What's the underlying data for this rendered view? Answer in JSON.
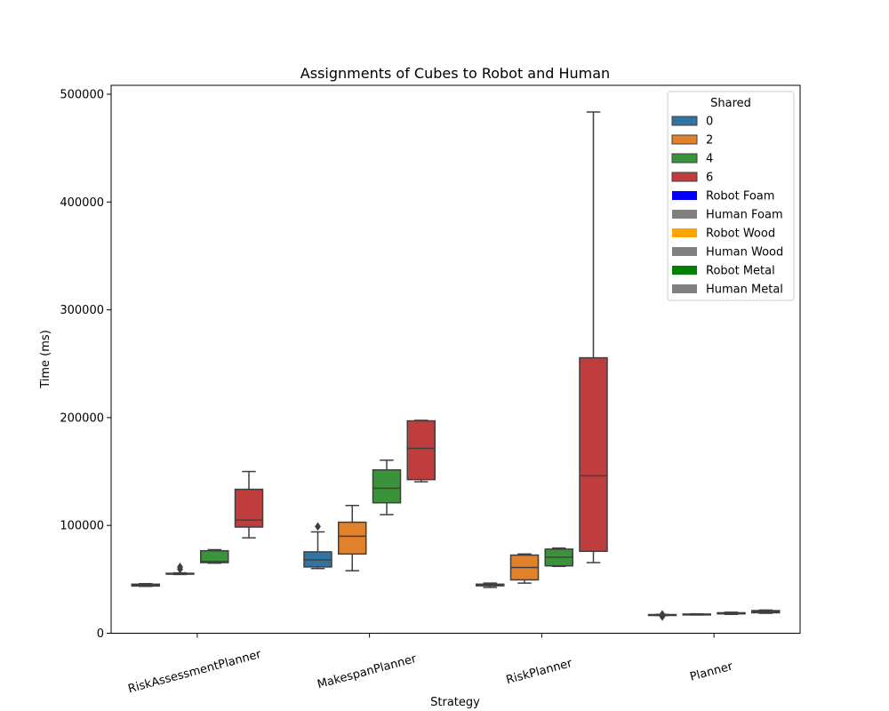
{
  "chart_data": {
    "type": "boxplot",
    "title": "Assignments of Cubes to Robot and Human",
    "xlabel": "Strategy",
    "ylabel": "Time (ms)",
    "ylim": [
      0,
      510000
    ],
    "yticks": [
      0,
      100000,
      200000,
      300000,
      400000,
      500000
    ],
    "categories": [
      "RiskAssessmentPlanner",
      "MakespanPlanner",
      "RiskPlanner",
      "Planner"
    ],
    "grid": false,
    "legend": {
      "title": "Shared",
      "position": "top-right",
      "entries": [
        {
          "label": "0",
          "color": "#3274a1"
        },
        {
          "label": "2",
          "color": "#e1812c"
        },
        {
          "label": "4",
          "color": "#3a923a"
        },
        {
          "label": "6",
          "color": "#c03d3e"
        },
        {
          "label": "Robot Foam",
          "color": "#0000ff"
        },
        {
          "label": "Human Foam",
          "color": "#808080"
        },
        {
          "label": "Robot Wood",
          "color": "#ffa500"
        },
        {
          "label": "Human Wood",
          "color": "#808080"
        },
        {
          "label": "Robot Metal",
          "color": "#008000"
        },
        {
          "label": "Human Metal",
          "color": "#808080"
        }
      ]
    },
    "series": [
      {
        "name": "0",
        "color": "#3274a1",
        "boxes": [
          {
            "category": "RiskAssessmentPlanner",
            "whisker_low": 43500,
            "q1": 43800,
            "median": 44500,
            "q3": 45500,
            "whisker_high": 46000,
            "outliers": []
          },
          {
            "category": "MakespanPlanner",
            "whisker_low": 60000,
            "q1": 61500,
            "median": 68000,
            "q3": 75500,
            "whisker_high": 94000,
            "outliers": [
              99000
            ]
          },
          {
            "category": "RiskPlanner",
            "whisker_low": 42500,
            "q1": 44000,
            "median": 45000,
            "q3": 45500,
            "whisker_high": 46500,
            "outliers": []
          },
          {
            "category": "Planner",
            "whisker_low": 16500,
            "q1": 16700,
            "median": 17000,
            "q3": 17300,
            "whisker_high": 17500,
            "outliers": [
              15500,
              17500
            ]
          }
        ]
      },
      {
        "name": "2",
        "color": "#e1812c",
        "boxes": [
          {
            "category": "RiskAssessmentPlanner",
            "whisker_low": 54500,
            "q1": 54800,
            "median": 55200,
            "q3": 55600,
            "whisker_high": 56000,
            "outliers": [
              59500,
              61500
            ]
          },
          {
            "category": "MakespanPlanner",
            "whisker_low": 58000,
            "q1": 73500,
            "median": 90000,
            "q3": 103000,
            "whisker_high": 118500,
            "outliers": []
          },
          {
            "category": "RiskPlanner",
            "whisker_low": 46500,
            "q1": 49500,
            "median": 61000,
            "q3": 72500,
            "whisker_high": 73500,
            "outliers": []
          },
          {
            "category": "Planner",
            "whisker_low": 17000,
            "q1": 17200,
            "median": 17500,
            "q3": 17800,
            "whisker_high": 18000,
            "outliers": []
          }
        ]
      },
      {
        "name": "4",
        "color": "#3a923a",
        "boxes": [
          {
            "category": "RiskAssessmentPlanner",
            "whisker_low": 65000,
            "q1": 65500,
            "median": 66500,
            "q3": 76500,
            "whisker_high": 77500,
            "outliers": []
          },
          {
            "category": "MakespanPlanner",
            "whisker_low": 110000,
            "q1": 121000,
            "median": 134500,
            "q3": 151500,
            "whisker_high": 160500,
            "outliers": []
          },
          {
            "category": "RiskPlanner",
            "whisker_low": 62000,
            "q1": 62500,
            "median": 70500,
            "q3": 78000,
            "whisker_high": 79000,
            "outliers": []
          },
          {
            "category": "Planner",
            "whisker_low": 17500,
            "q1": 18000,
            "median": 18500,
            "q3": 19000,
            "whisker_high": 19500,
            "outliers": []
          }
        ]
      },
      {
        "name": "6",
        "color": "#c03d3e",
        "boxes": [
          {
            "category": "RiskAssessmentPlanner",
            "whisker_low": 88500,
            "q1": 98500,
            "median": 105000,
            "q3": 133500,
            "whisker_high": 150000,
            "outliers": []
          },
          {
            "category": "MakespanPlanner",
            "whisker_low": 140500,
            "q1": 142500,
            "median": 171500,
            "q3": 197000,
            "whisker_high": 197500,
            "outliers": []
          },
          {
            "category": "RiskPlanner",
            "whisker_low": 65500,
            "q1": 76000,
            "median": 146000,
            "q3": 255500,
            "whisker_high": 483500,
            "outliers": []
          },
          {
            "category": "Planner",
            "whisker_low": 18500,
            "q1": 19000,
            "median": 20000,
            "q3": 21000,
            "whisker_high": 21500,
            "outliers": []
          }
        ]
      }
    ]
  }
}
